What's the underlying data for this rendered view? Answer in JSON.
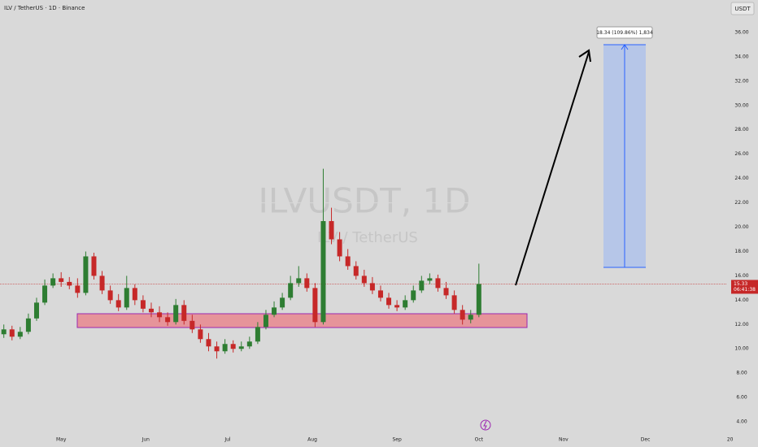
{
  "chart_data": {
    "type": "candlestick",
    "title": "ILV / TetherUS · 1D · Binance",
    "currency": "USDT",
    "watermark": "ILVUSDT, 1D",
    "watermark_subtitle": "ILV / TetherUS",
    "measure_label": "18.34 (109.86%) 1,834",
    "last_price": 15.33,
    "countdown": "06:41:38",
    "up_color": "#2e7d32",
    "down_color": "#c62828",
    "x": [
      97,
      100,
      103,
      106,
      109,
      112,
      115,
      118,
      121,
      124,
      127,
      130,
      133,
      136,
      139,
      142,
      145,
      148,
      151,
      154,
      157,
      160,
      163,
      166,
      169,
      172,
      175,
      178,
      181,
      184,
      187,
      190,
      193,
      196,
      199,
      202,
      205,
      208,
      211,
      214,
      217,
      220,
      223,
      226,
      229,
      232,
      235,
      238,
      241,
      244,
      247,
      250,
      253,
      256,
      259,
      262,
      265,
      268,
      271,
      274
    ],
    "open": [
      11.0,
      11.2,
      11.6,
      11.0,
      11.4,
      12.5,
      13.8,
      15.2,
      15.8,
      15.5,
      15.2,
      14.6,
      17.6,
      16.0,
      14.8,
      14.0,
      13.4,
      15.0,
      14.0,
      13.3,
      13.0,
      12.6,
      12.2,
      13.6,
      12.3,
      11.6,
      10.8,
      10.2,
      9.8,
      10.4,
      10.0,
      10.2,
      10.6,
      11.8,
      12.8,
      13.4,
      14.2,
      15.4,
      15.8,
      15.0,
      12.2,
      20.5,
      19.0,
      17.6,
      16.8,
      16.0,
      15.4,
      14.8,
      14.2,
      13.6,
      13.4,
      14.0,
      14.8,
      15.6,
      15.8,
      15.0,
      14.4,
      13.2,
      12.4,
      12.8
    ],
    "high": [
      11.8,
      12.0,
      11.9,
      11.8,
      12.9,
      14.2,
      15.7,
      16.2,
      16.3,
      15.9,
      15.8,
      18.0,
      17.9,
      16.4,
      15.2,
      14.5,
      16.0,
      15.3,
      14.4,
      13.8,
      13.5,
      13.0,
      14.1,
      14.0,
      12.8,
      12.0,
      11.3,
      10.6,
      10.8,
      10.7,
      10.6,
      11.0,
      12.2,
      13.2,
      13.9,
      14.6,
      16.0,
      16.8,
      16.2,
      15.4,
      24.8,
      21.6,
      19.6,
      18.2,
      17.2,
      16.5,
      15.9,
      15.2,
      14.6,
      14.0,
      14.4,
      15.2,
      16.0,
      16.2,
      16.1,
      15.5,
      14.8,
      13.6,
      13.2,
      17.0
    ],
    "low": [
      10.6,
      10.9,
      10.7,
      10.8,
      11.2,
      12.3,
      13.6,
      15.0,
      15.1,
      14.9,
      14.2,
      14.4,
      15.7,
      14.5,
      13.7,
      13.1,
      13.2,
      13.6,
      13.0,
      12.6,
      12.2,
      11.9,
      12.0,
      12.0,
      11.3,
      10.5,
      9.8,
      9.2,
      9.6,
      9.7,
      9.8,
      10.0,
      10.4,
      11.6,
      12.6,
      13.2,
      14.0,
      15.1,
      14.7,
      11.8,
      12.0,
      18.6,
      17.2,
      16.5,
      15.7,
      15.1,
      14.5,
      13.9,
      13.3,
      13.1,
      13.2,
      13.8,
      14.6,
      15.3,
      14.7,
      14.1,
      12.9,
      12.0,
      12.1,
      12.6
    ],
    "close": [
      11.2,
      11.6,
      11.0,
      11.4,
      12.5,
      13.8,
      15.2,
      15.8,
      15.5,
      15.2,
      14.6,
      17.6,
      16.0,
      14.8,
      14.0,
      13.4,
      15.0,
      14.0,
      13.3,
      13.0,
      12.6,
      12.2,
      13.6,
      12.3,
      11.6,
      10.8,
      10.2,
      9.8,
      10.4,
      10.0,
      10.2,
      10.6,
      11.8,
      12.8,
      13.4,
      14.2,
      15.4,
      15.8,
      15.0,
      12.2,
      20.5,
      19.0,
      17.6,
      16.8,
      16.0,
      15.4,
      14.8,
      14.2,
      13.6,
      13.4,
      14.0,
      14.8,
      15.6,
      15.8,
      15.0,
      14.4,
      13.2,
      12.4,
      12.8,
      15.33
    ],
    "xlim": [
      98.6,
      366.7
    ],
    "xticks": [
      {
        "value": 121,
        "label": "May"
      },
      {
        "value": 152,
        "label": "Jun"
      },
      {
        "value": 182,
        "label": "Jul"
      },
      {
        "value": 213,
        "label": "Aug"
      },
      {
        "value": 244,
        "label": "Sep"
      },
      {
        "value": 274,
        "label": "Oct"
      },
      {
        "value": 305,
        "label": "Nov"
      },
      {
        "value": 335,
        "label": "Dec"
      },
      {
        "value": 366,
        "label": "20"
      }
    ],
    "ylim": [
      3.27,
      38.67
    ],
    "yticks": [
      {
        "value": 4,
        "label": "4.00"
      },
      {
        "value": 6,
        "label": "6.00"
      },
      {
        "value": 8,
        "label": "8.00"
      },
      {
        "value": 10,
        "label": "10.00"
      },
      {
        "value": 12,
        "label": "12.00"
      },
      {
        "value": 14,
        "label": "14.00"
      },
      {
        "value": 16,
        "label": "16.00"
      },
      {
        "value": 18,
        "label": "18.00"
      },
      {
        "value": 20,
        "label": "20.00"
      },
      {
        "value": 22,
        "label": "22.00"
      },
      {
        "value": 24,
        "label": "24.00"
      },
      {
        "value": 26,
        "label": "26.00"
      },
      {
        "value": 28,
        "label": "28.00"
      },
      {
        "value": 30,
        "label": "30.00"
      },
      {
        "value": 32,
        "label": "32.00"
      },
      {
        "value": 34,
        "label": "34.00"
      },
      {
        "value": 36,
        "label": "36.00"
      }
    ]
  }
}
